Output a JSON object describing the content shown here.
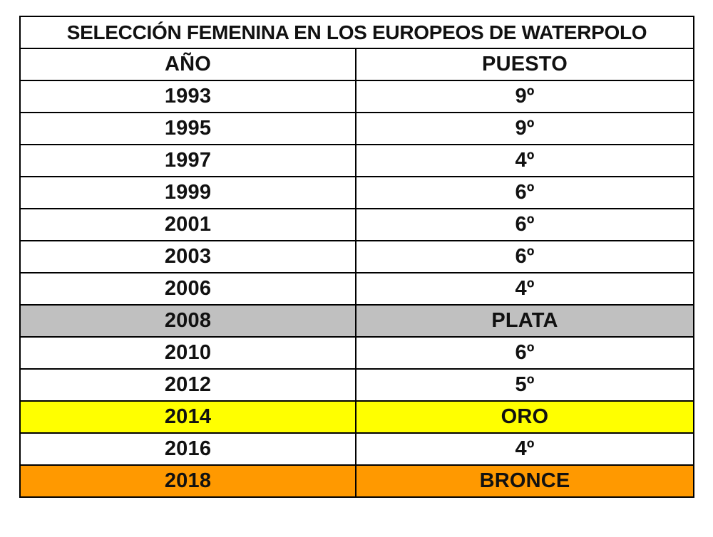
{
  "table": {
    "title": "SELECCIÓN FEMENINA EN LOS EUROPEOS DE WATERPOLO",
    "headers": {
      "year": "AÑO",
      "position": "PUESTO"
    },
    "rows": [
      {
        "year": "1993",
        "position": "9º",
        "highlight": "#ffffff"
      },
      {
        "year": "1995",
        "position": "9º",
        "highlight": "#ffffff"
      },
      {
        "year": "1997",
        "position": "4º",
        "highlight": "#ffffff"
      },
      {
        "year": "1999",
        "position": "6º",
        "highlight": "#ffffff"
      },
      {
        "year": "2001",
        "position": "6º",
        "highlight": "#ffffff"
      },
      {
        "year": "2003",
        "position": "6º",
        "highlight": "#ffffff"
      },
      {
        "year": "2006",
        "position": "4º",
        "highlight": "#ffffff"
      },
      {
        "year": "2008",
        "position": "PLATA",
        "highlight": "#c0c0c0"
      },
      {
        "year": "2010",
        "position": "6º",
        "highlight": "#ffffff"
      },
      {
        "year": "2012",
        "position": "5º",
        "highlight": "#ffffff"
      },
      {
        "year": "2014",
        "position": "ORO",
        "highlight": "#ffff00"
      },
      {
        "year": "2016",
        "position": "4º",
        "highlight": "#ffffff"
      },
      {
        "year": "2018",
        "position": "BRONCE",
        "highlight": "#ff9900"
      }
    ]
  }
}
